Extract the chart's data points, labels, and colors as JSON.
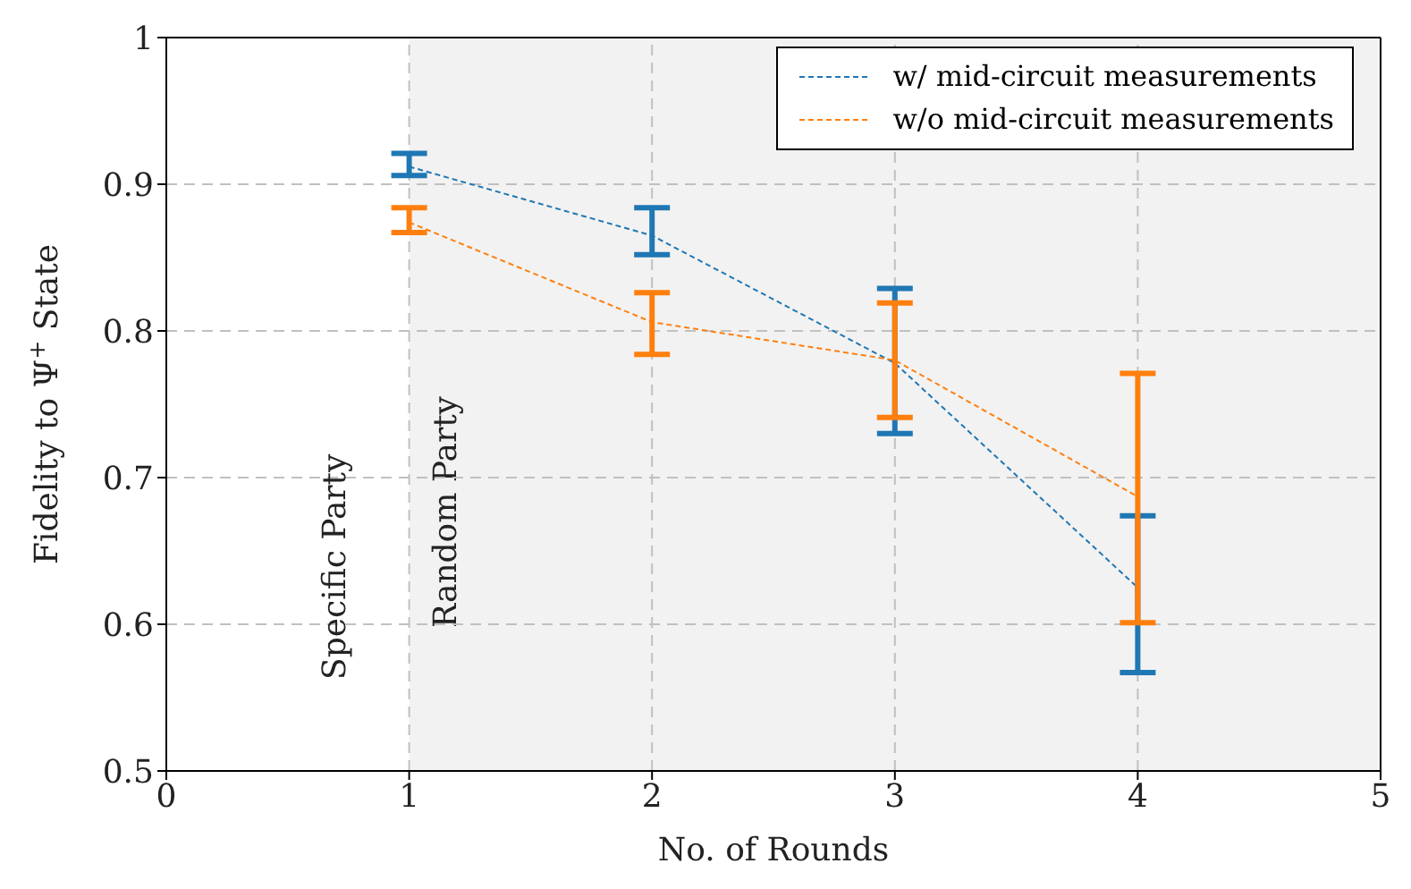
{
  "chart_data": {
    "type": "line",
    "xlabel": "No. of Rounds",
    "ylabel": "Fidelity to Ψ$^{+}$ State",
    "x": [
      1,
      2,
      3,
      4
    ],
    "series": [
      {
        "name": "w/ mid-circuit measurements",
        "color": "#1f77b4",
        "values": [
          0.912,
          0.865,
          0.778,
          0.625
        ],
        "errors": [
          [
            0.906,
            0.921
          ],
          [
            0.852,
            0.884
          ],
          [
            0.73,
            0.829
          ],
          [
            0.567,
            0.674
          ]
        ]
      },
      {
        "name": "w/o mid-circuit measurements",
        "color": "#ff7f0e",
        "values": [
          0.874,
          0.806,
          0.78,
          0.687
        ],
        "errors": [
          [
            0.867,
            0.884
          ],
          [
            0.784,
            0.826
          ],
          [
            0.741,
            0.819
          ],
          [
            0.601,
            0.771
          ]
        ]
      }
    ],
    "xlim": [
      0,
      5
    ],
    "xticks": [
      0,
      1,
      2,
      3,
      4,
      5
    ],
    "ylim": [
      0.5,
      1
    ],
    "yticks": [
      0.5,
      0.6,
      0.7,
      0.8,
      0.9,
      1
    ],
    "bands": [
      {
        "axis": "x",
        "from": 1,
        "to": 5,
        "label": "Random Party",
        "color": "#f2f2f2"
      }
    ],
    "annotations": [
      "Specific Party"
    ],
    "grid": true,
    "legend": "top right",
    "marker": "none",
    "line_style": "dashed"
  }
}
